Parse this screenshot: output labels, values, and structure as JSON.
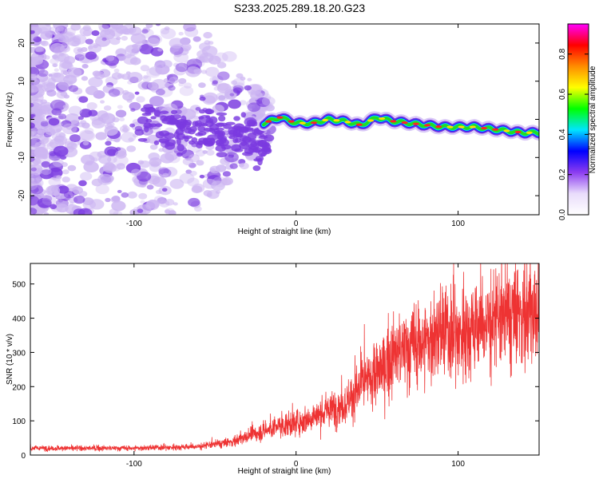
{
  "title": "S233.2025.289.18.20.G23",
  "colors": {
    "series": "#ee3333",
    "frame": "#000000",
    "blob_light": "#cdb6f2",
    "blob_dark": "#7a3ae0"
  },
  "chart_data": [
    {
      "type": "heatmap",
      "title": "S233.2025.289.18.20.G23",
      "xlabel": "Height of straight line (km)",
      "ylabel": "Frequency (Hz)",
      "xlim": [
        -164,
        150
      ],
      "ylim": [
        -25,
        25
      ],
      "xticks": [
        -100,
        0,
        100
      ],
      "yticks": [
        -20,
        -10,
        0,
        10,
        20
      ],
      "colorbar": {
        "label": "Normalized spectral amplitude",
        "range": [
          0,
          0.95
        ],
        "ticks": [
          "0.0",
          "0.2",
          "0.4",
          "0.6",
          "0.8"
        ],
        "colormap": [
          "#ffffff",
          "#e9dcfb",
          "#8c3cf0",
          "#0000ff",
          "#00e5ff",
          "#00ff00",
          "#ffff00",
          "#ff8c00",
          "#ff0000",
          "#ff00ff"
        ]
      },
      "ridge": {
        "description": "dominant frequency line vs height",
        "x": [
          -20,
          -10,
          0,
          10,
          20,
          30,
          40,
          50,
          60,
          70,
          80,
          90,
          100,
          110,
          120,
          130,
          140,
          150
        ],
        "freq": [
          -1,
          0.5,
          -1,
          -1,
          0,
          -0.5,
          -1.5,
          0.5,
          -0.5,
          -1,
          -1.5,
          -2,
          -2,
          -2,
          -2.5,
          -3,
          -3.5,
          -3.5
        ]
      }
    },
    {
      "type": "line",
      "xlabel": "Height of straight line (km)",
      "ylabel": "SNR (10 * v/v)",
      "xlim": [
        -164,
        150
      ],
      "ylim": [
        0,
        560
      ],
      "xticks": [
        -100,
        0,
        100
      ],
      "yticks": [
        0,
        100,
        200,
        300,
        400,
        500
      ],
      "series": [
        {
          "name": "SNR",
          "x": [
            -164,
            -140,
            -120,
            -100,
            -80,
            -60,
            -40,
            -30,
            -20,
            -10,
            0,
            10,
            20,
            30,
            40,
            50,
            60,
            70,
            80,
            90,
            100,
            110,
            120,
            130,
            140,
            150
          ],
          "y": [
            20,
            20,
            20,
            20,
            22,
            25,
            38,
            55,
            70,
            85,
            95,
            110,
            130,
            150,
            200,
            235,
            290,
            315,
            330,
            355,
            350,
            375,
            390,
            400,
            415,
            420
          ]
        }
      ]
    }
  ]
}
